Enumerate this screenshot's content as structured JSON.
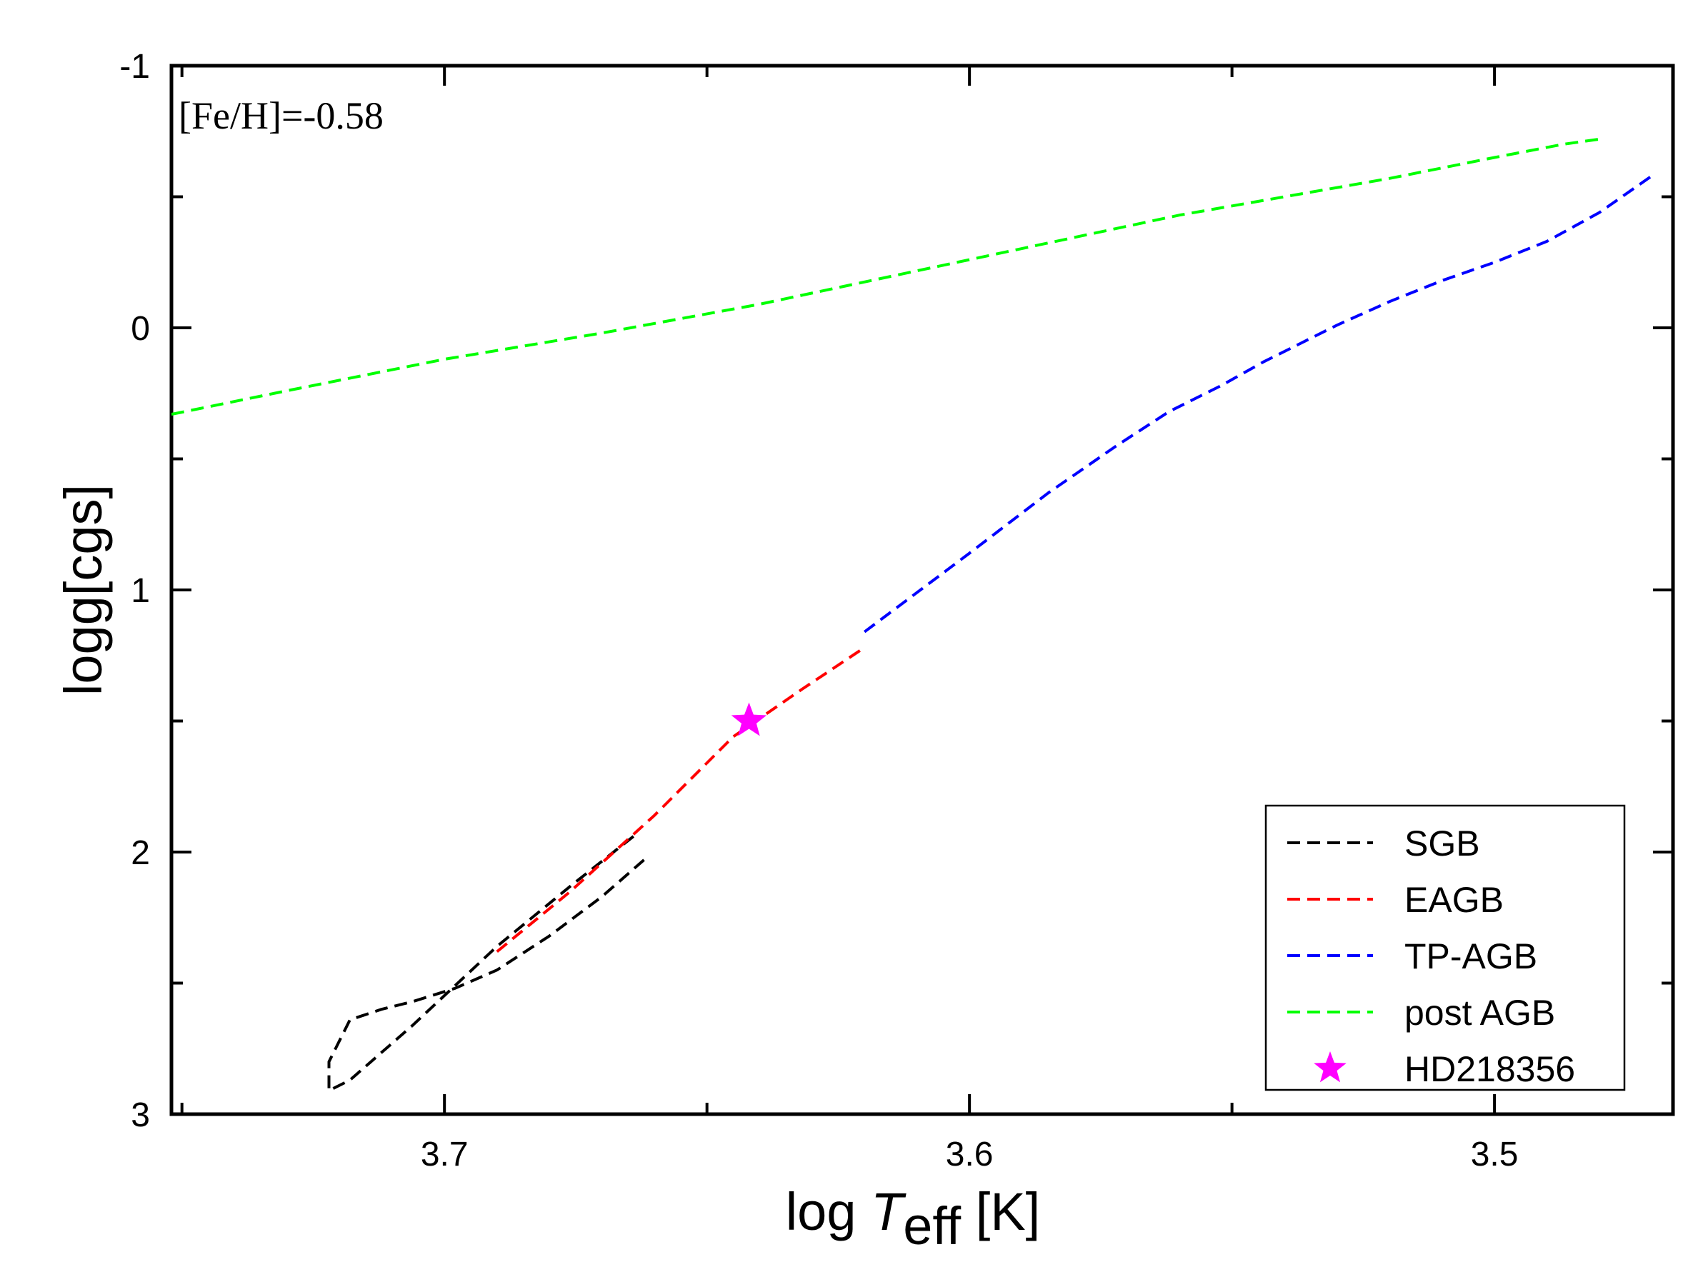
{
  "chart_data": {
    "type": "line",
    "title": "",
    "annotation": "[Fe/H]=-0.58",
    "xlabel": {
      "prefix": "log",
      "symbol": "T",
      "subscript": "eff",
      "unit": "[K]"
    },
    "ylabel": "logg[cgs]",
    "xlim": [
      3.752,
      3.466
    ],
    "ylim": [
      3,
      -1
    ],
    "x_ticks": [
      3.7,
      3.6,
      3.5
    ],
    "x_tick_labels": [
      "3.7",
      "3.6",
      "3.5"
    ],
    "y_ticks": [
      -1,
      0,
      1,
      2,
      3
    ],
    "y_tick_labels": [
      "-1",
      "0",
      "1",
      "2",
      "3"
    ],
    "legend_position": "bottom-right",
    "series": [
      {
        "name": "SGB",
        "color": "#000000",
        "style": "dashed",
        "x": [
          3.664,
          3.676,
          3.69,
          3.706,
          3.718,
          3.722,
          3.722,
          3.718,
          3.712,
          3.706,
          3.698,
          3.69,
          3.68,
          3.67,
          3.662
        ],
        "y": [
          1.94,
          2.13,
          2.36,
          2.66,
          2.87,
          2.91,
          2.8,
          2.64,
          2.6,
          2.57,
          2.52,
          2.45,
          2.32,
          2.17,
          2.03
        ]
      },
      {
        "name": "EAGB",
        "color": "#ff0000",
        "style": "dashed",
        "x": [
          3.69,
          3.676,
          3.66,
          3.645,
          3.632,
          3.62
        ],
        "y": [
          2.38,
          2.15,
          1.86,
          1.56,
          1.38,
          1.22
        ]
      },
      {
        "name": "TP-AGB",
        "color": "#0000ff",
        "style": "dashed",
        "x": [
          3.62,
          3.6,
          3.585,
          3.572,
          3.562,
          3.552,
          3.544,
          3.537,
          3.53,
          3.52,
          3.51,
          3.5,
          3.49,
          3.48,
          3.47
        ],
        "y": [
          1.16,
          0.86,
          0.63,
          0.45,
          0.32,
          0.22,
          0.13,
          0.06,
          -0.01,
          -0.1,
          -0.18,
          -0.25,
          -0.33,
          -0.44,
          -0.58
        ]
      },
      {
        "name": "post AGB",
        "color": "#00ff00",
        "style": "dashed",
        "x": [
          3.752,
          3.73,
          3.7,
          3.67,
          3.64,
          3.6,
          3.56,
          3.52,
          3.5,
          3.487,
          3.48
        ],
        "y": [
          0.33,
          0.24,
          0.12,
          0.02,
          -0.09,
          -0.26,
          -0.43,
          -0.57,
          -0.65,
          -0.7,
          -0.72
        ]
      }
    ],
    "points": [
      {
        "name": "HD218356",
        "x": 3.642,
        "y": 1.5,
        "marker": "star",
        "color": "#ff00ff"
      }
    ]
  }
}
